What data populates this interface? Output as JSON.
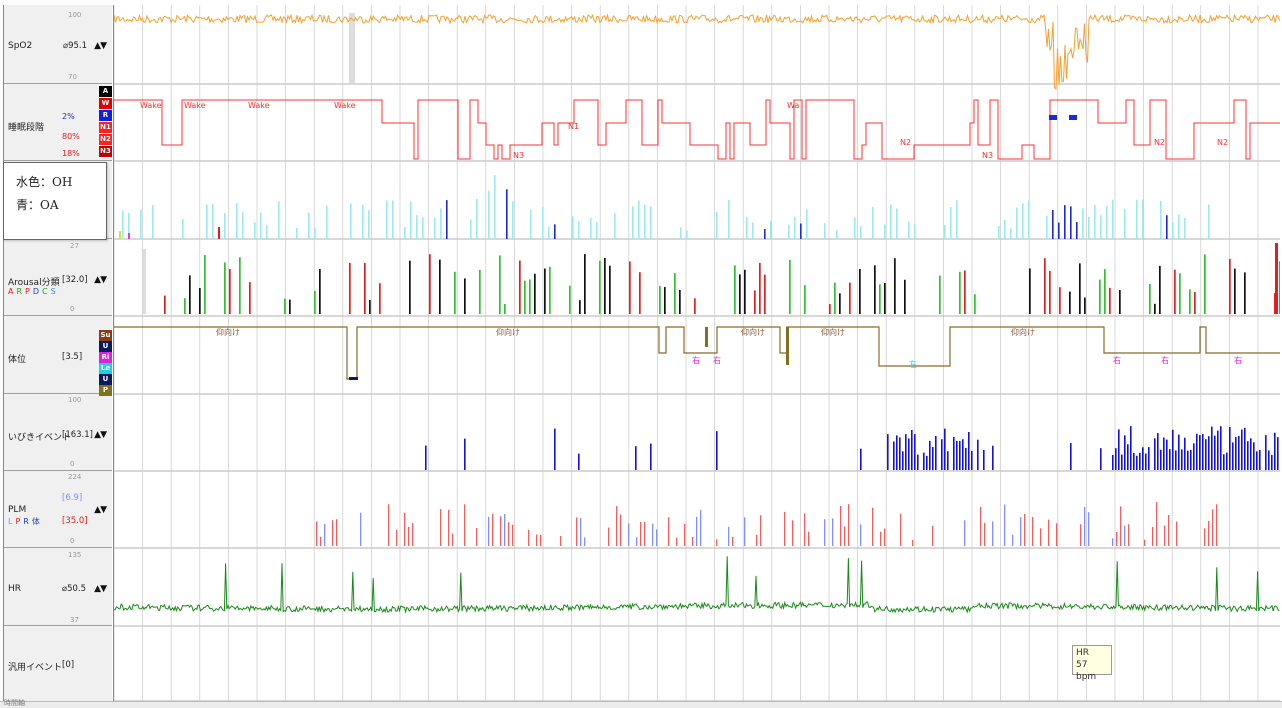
{
  "lanes": [
    {
      "id": "spo2",
      "name": "SpO2",
      "value": "⌀95.1",
      "scale_top": "100",
      "scale_bottom": "70",
      "has_arrows": true
    },
    {
      "id": "stage",
      "name": "睡眠段階",
      "stage_tags": [
        {
          "label": "A",
          "color": "#000000"
        },
        {
          "label": "W",
          "color": "#e00000"
        },
        {
          "label": "R",
          "color": "#1020e0"
        },
        {
          "label": "N1",
          "color": "#ff2020"
        },
        {
          "label": "N2",
          "color": "#ff2020"
        },
        {
          "label": "N3",
          "color": "#c00000"
        }
      ],
      "percents": [
        {
          "text": "2%",
          "color": "#2030d0"
        },
        {
          "text": "80%",
          "color": "#e02020"
        },
        {
          "text": "18%",
          "color": "#e02020"
        }
      ]
    },
    {
      "id": "resp",
      "name": ""
    },
    {
      "id": "arousal",
      "name": "Arousal分類",
      "value": "[32.0]",
      "scale_top": "27",
      "scale_bottom": "0",
      "has_arrows": true,
      "legend": [
        {
          "text": "A",
          "color": "#e02020"
        },
        {
          "text": "R",
          "color": "#20a020"
        },
        {
          "text": "P",
          "color": "#e02020"
        },
        {
          "text": "D",
          "color": "#2040d0"
        },
        {
          "text": "C",
          "color": "#20a020"
        },
        {
          "text": "S",
          "color": "#2a9ad0"
        }
      ]
    },
    {
      "id": "position",
      "name": "体位",
      "value": "[3.5]",
      "stage_tags": [
        {
          "label": "Su",
          "color": "#8b3a1a"
        },
        {
          "label": "U",
          "color": "#0a1a5a"
        },
        {
          "label": "Ri",
          "color": "#e020e0"
        },
        {
          "label": "Le",
          "color": "#20d0e0"
        },
        {
          "label": "U",
          "color": "#0a1a5a"
        },
        {
          "label": "P",
          "color": "#807020"
        }
      ]
    },
    {
      "id": "snore",
      "name": "いびきイベント",
      "value": "[163.1]",
      "scale_top": "100",
      "scale_bottom": "0",
      "has_arrows": true
    },
    {
      "id": "plm",
      "name": "PLM",
      "value_top": "[6.9]",
      "value": "[35.0]",
      "scale_top": "224",
      "scale_bottom": "0",
      "has_arrows": true,
      "legend": [
        {
          "text": "L",
          "color": "#8090ff"
        },
        {
          "text": "P",
          "color": "#e02020"
        },
        {
          "text": "R",
          "color": "#2040d0"
        },
        {
          "text": "体",
          "color": "#2040d0"
        }
      ]
    },
    {
      "id": "hr",
      "name": "HR",
      "value": "⌀50.5",
      "scale_top": "135",
      "scale_bottom": "37",
      "has_arrows": true
    },
    {
      "id": "generic",
      "name": "汎用イベント",
      "value": "[0]"
    }
  ],
  "arrow_glyph": "▲▼",
  "note": {
    "line1": "水色：OH",
    "line2": "青：OA"
  },
  "tooltip": {
    "line1": "HR",
    "line2": "57 bpm"
  },
  "stage_text_labels": [
    "Wake",
    "Wake",
    "Wake",
    "Wake",
    "N1",
    "Wa",
    "N3",
    "N2",
    "N3",
    "N2",
    "N2"
  ],
  "position_text_labels": [
    "仰向け",
    "仰向け",
    "仰向け",
    "仰向け",
    "仰向け",
    "右",
    "右",
    "左",
    "右",
    "右",
    "右"
  ],
  "bottom_text": "時間軸",
  "colors": {
    "spo2": "#f5a030",
    "stage": "#ff3030",
    "oa": "#1a2ad8",
    "oh": "#9ae8f0",
    "arousal_black": "#111111",
    "arousal_red": "#e02020",
    "arousal_green": "#30c030",
    "position": "#8b6a2a",
    "position_right": "#e020e0",
    "position_left": "#20d0e0",
    "snore": "#1010e0",
    "plm_red": "#f06060",
    "plm_blue": "#8090ff",
    "hr": "#1a8a1a",
    "grid": "#c8c8c8"
  }
}
